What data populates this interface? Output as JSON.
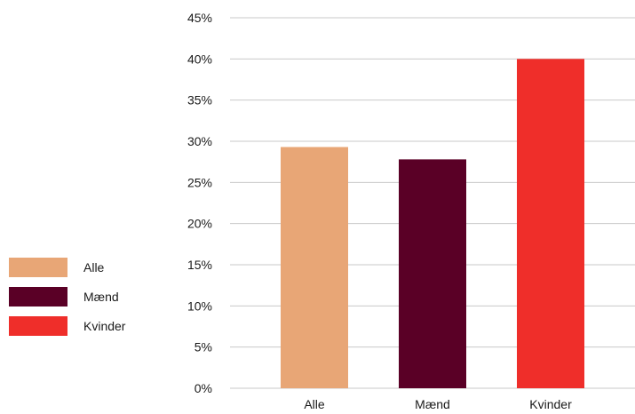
{
  "chart_data": {
    "type": "bar",
    "categories": [
      "Alle",
      "Mænd",
      "Kvinder"
    ],
    "values": [
      29.3,
      27.8,
      40.0
    ],
    "colors": [
      "#e8a676",
      "#5a0026",
      "#ef2e2a"
    ],
    "ylim": [
      0,
      45
    ],
    "yticks": [
      "0%",
      "5%",
      "10%",
      "15%",
      "20%",
      "25%",
      "30%",
      "35%",
      "40%",
      "45%"
    ],
    "grid": true,
    "legend_position": "left",
    "legend": [
      {
        "label": "Alle",
        "color": "#e8a676"
      },
      {
        "label": "Mænd",
        "color": "#5a0026"
      },
      {
        "label": "Kvinder",
        "color": "#ef2e2a"
      }
    ]
  }
}
